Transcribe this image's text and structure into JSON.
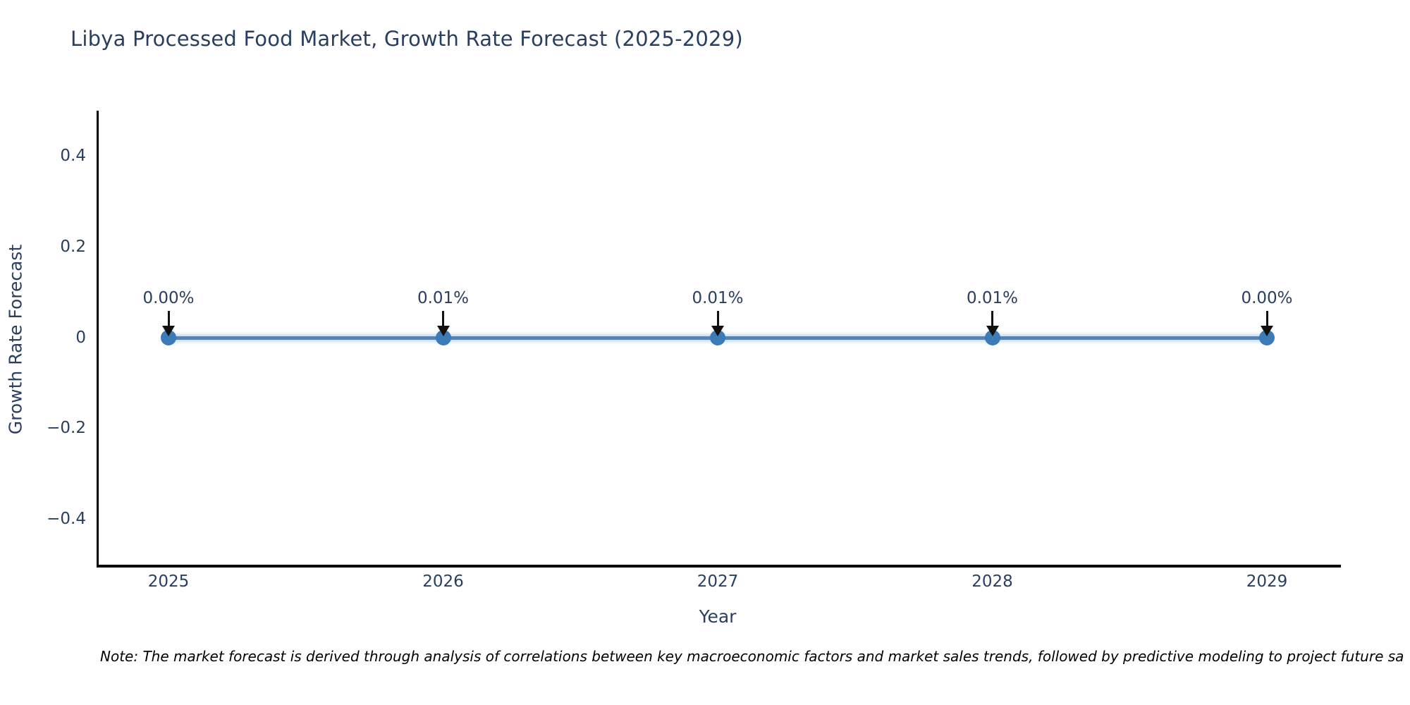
{
  "title": "Libya Processed Food Market, Growth Rate Forecast (2025-2029)",
  "footnote": "Note: The market forecast is derived through analysis of correlations between key macroeconomic factors and market sales trends, followed by predictive modeling to project future sa",
  "chart_data": {
    "type": "line",
    "title": "Libya Processed Food Market, Growth Rate Forecast (2025-2029)",
    "xlabel": "Year",
    "ylabel": "Growth Rate Forecast",
    "categories": [
      "2025",
      "2026",
      "2027",
      "2028",
      "2029"
    ],
    "series": [
      {
        "name": "Growth Rate Forecast",
        "values_percent": [
          0.0,
          0.01,
          0.01,
          0.01,
          0.0
        ],
        "point_labels": [
          "0.00%",
          "0.01%",
          "0.01%",
          "0.01%",
          "0.00%"
        ]
      }
    ],
    "y_ticks": [
      {
        "label": "0.4",
        "value": 0.4
      },
      {
        "label": "0.2",
        "value": 0.2
      },
      {
        "label": "0",
        "value": 0.0
      },
      {
        "label": "−0.2",
        "value": -0.2
      },
      {
        "label": "−0.4",
        "value": -0.4
      }
    ],
    "ylim": [
      -0.5,
      0.5
    ],
    "grid": false,
    "legend_position": "none",
    "annotations_have_arrows": true,
    "colors": {
      "line": "#4f87bd",
      "marker": "#3d7ab8",
      "axis": "#000000",
      "text": "#2a3f5f",
      "arrow": "#111111",
      "background": "#ffffff"
    }
  }
}
